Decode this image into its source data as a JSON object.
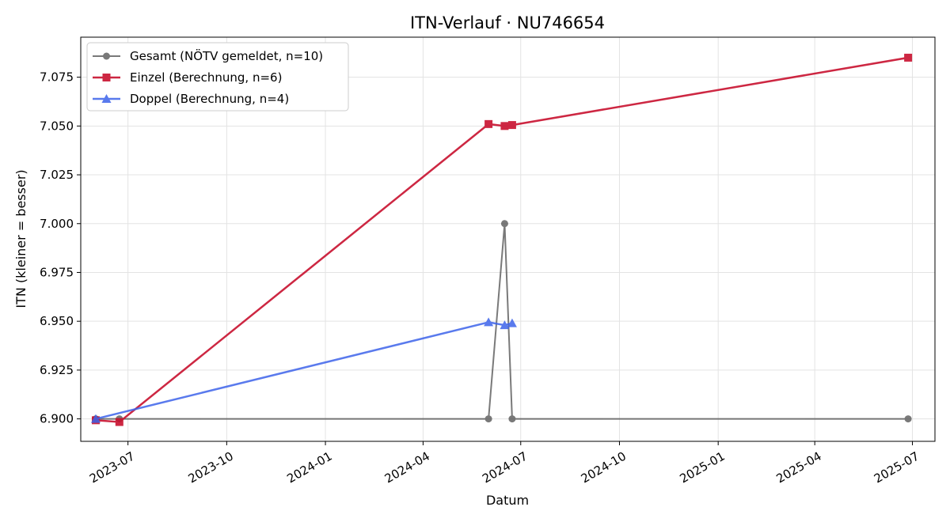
{
  "chart_data": {
    "type": "line",
    "title": "ITN-Verlauf · NU746654",
    "xlabel": "Datum",
    "ylabel": "ITN  (kleiner = besser)",
    "xlim": [
      "2023-05-18",
      "2025-07-22"
    ],
    "ylim": [
      6.8885,
      7.0955
    ],
    "grid": true,
    "legend_position": "top-left",
    "x_ticks": [
      "2023-07",
      "2023-10",
      "2024-01",
      "2024-04",
      "2024-07",
      "2024-10",
      "2025-01",
      "2025-04",
      "2025-07"
    ],
    "y_ticks": [
      6.9,
      6.925,
      6.95,
      6.975,
      7.0,
      7.025,
      7.05,
      7.075
    ],
    "series": [
      {
        "name": "Gesamt (NÖTV gemeldet, n=10)",
        "color": "#4d4d4d",
        "marker": "circle",
        "points": [
          {
            "x": "2023-06-01",
            "y": 6.9
          },
          {
            "x": "2023-06-23",
            "y": 6.9
          },
          {
            "x": "2024-06-01",
            "y": 6.9
          },
          {
            "x": "2024-06-16",
            "y": 7.0
          },
          {
            "x": "2024-06-23",
            "y": 6.9
          },
          {
            "x": "2025-06-27",
            "y": 6.9
          }
        ]
      },
      {
        "name": "Einzel (Berechnung, n=6)",
        "color": "#c8102e",
        "marker": "square",
        "points": [
          {
            "x": "2023-06-01",
            "y": 6.8993
          },
          {
            "x": "2023-06-23",
            "y": 6.8984
          },
          {
            "x": "2024-06-01",
            "y": 7.051
          },
          {
            "x": "2024-06-16",
            "y": 7.05
          },
          {
            "x": "2024-06-23",
            "y": 7.0505
          },
          {
            "x": "2025-06-27",
            "y": 7.085
          }
        ]
      },
      {
        "name": "Doppel (Berechnung, n=4)",
        "color": "#3d63ea",
        "marker": "triangle",
        "points": [
          {
            "x": "2023-06-01",
            "y": 6.9
          },
          {
            "x": "2024-06-01",
            "y": 6.9495
          },
          {
            "x": "2024-06-16",
            "y": 6.948
          },
          {
            "x": "2024-06-23",
            "y": 6.949
          }
        ]
      }
    ]
  }
}
